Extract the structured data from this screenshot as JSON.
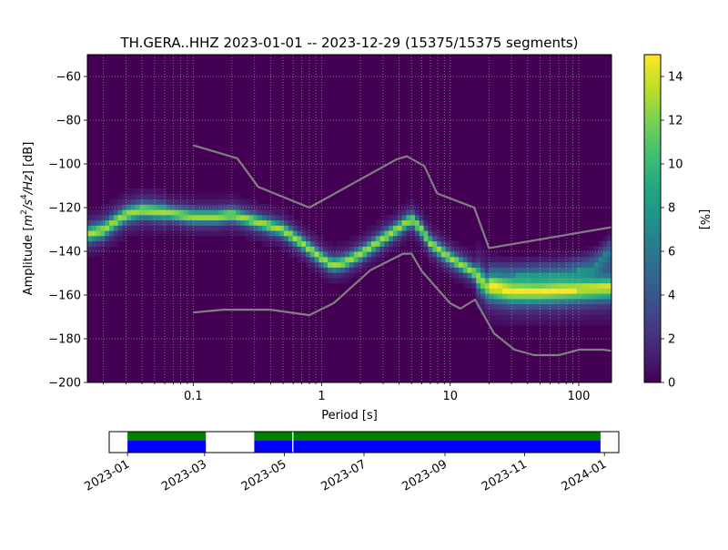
{
  "chart_data": [
    {
      "type": "heatmap",
      "title": "TH.GERA..HHZ   2023-01-01 -- 2023-12-29  (15375/15375 segments)",
      "xlabel": "Period [s]",
      "ylabel_parts": [
        "Amplitude [",
        "m",
        "2",
        "/s",
        "4",
        "/Hz",
        "] [dB]"
      ],
      "x_scale": "log",
      "xlim": [
        0.015,
        180
      ],
      "ylim": [
        -200,
        -50
      ],
      "x_ticks": [
        0.1,
        1,
        10,
        100
      ],
      "x_tick_labels": [
        "0.1",
        "1",
        "10",
        "100"
      ],
      "y_ticks": [
        -60,
        -80,
        -100,
        -120,
        -140,
        -160,
        -180,
        -200
      ],
      "y_tick_labels": [
        "−60",
        "−80",
        "−100",
        "−120",
        "−140",
        "−160",
        "−180",
        "−200"
      ],
      "grid": true,
      "background_color": "#440154",
      "colormap": "viridis",
      "colorbar": {
        "label": "[%]",
        "range": [
          0,
          15
        ],
        "ticks": [
          0,
          2,
          4,
          6,
          8,
          10,
          12,
          14
        ],
        "tick_labels": [
          "0",
          "2",
          "4",
          "6",
          "8",
          "10",
          "12",
          "14"
        ]
      },
      "density_ridge": {
        "x": [
          0.015,
          0.02,
          0.025,
          0.03,
          0.04,
          0.06,
          0.1,
          0.15,
          0.2,
          0.3,
          0.5,
          0.7,
          1.0,
          1.2,
          1.5,
          2.0,
          3.0,
          4.0,
          5.0,
          6.0,
          7.0,
          10,
          15,
          20,
          30,
          50,
          100,
          180
        ],
        "y": [
          -132,
          -130,
          -126,
          -123,
          -121,
          -122,
          -124,
          -124,
          -123,
          -126,
          -130,
          -136,
          -143,
          -146,
          -145,
          -141,
          -134,
          -129,
          -125,
          -130,
          -136,
          -143,
          -149,
          -157,
          -159,
          -159,
          -158,
          -157
        ],
        "upper_branch_y": [
          -151,
          -151,
          -150,
          -150,
          -148,
          -146,
          -141,
          -138
        ],
        "upper_branch_x": [
          20,
          30,
          50,
          70,
          100,
          130,
          160,
          180
        ],
        "peak_percent": 10
      },
      "noise_model_high": {
        "x": [
          0.1,
          0.22,
          0.32,
          0.8,
          3.8,
          4.6,
          6.3,
          7.9,
          15.4,
          20,
          354.8
        ],
        "y": [
          -91.5,
          -97.4,
          -110.5,
          -120,
          -98,
          -96.5,
          -101,
          -113.5,
          -120,
          -138.5,
          -126
        ]
      },
      "noise_model_low": {
        "x": [
          0.1,
          0.17,
          0.4,
          0.8,
          1.24,
          2.4,
          4.3,
          5.0,
          6.0,
          10,
          12,
          15.6,
          21.9,
          31.6,
          45,
          70,
          101,
          154,
          328
        ],
        "y": [
          -168,
          -166.7,
          -166.7,
          -169.2,
          -163.7,
          -148.6,
          -141.1,
          -141.1,
          -149,
          -163.8,
          -166.2,
          -162.1,
          -177.5,
          -185,
          -187.5,
          -187.5,
          -185,
          -185,
          -187.5
        ]
      },
      "noise_model_color": "#808080"
    },
    {
      "type": "timeline",
      "x_range": [
        "2022-12-18",
        "2024-01-12"
      ],
      "tick_labels": [
        "2023-01",
        "2023-03",
        "2023-05",
        "2023-07",
        "2023-09",
        "2023-11",
        "2024-01"
      ],
      "tick_dates": [
        "2023-01-01",
        "2023-03-01",
        "2023-05-01",
        "2023-07-01",
        "2023-09-01",
        "2023-11-01",
        "2024-01-01"
      ],
      "data_segments": [
        {
          "start": "2023-01-01",
          "end": "2023-03-02"
        },
        {
          "start": "2023-04-08",
          "end": "2023-05-07"
        },
        {
          "start": "2023-05-08",
          "end": "2023-12-29"
        }
      ],
      "colors": {
        "available": "#0000ff",
        "used": "#008000"
      }
    }
  ]
}
